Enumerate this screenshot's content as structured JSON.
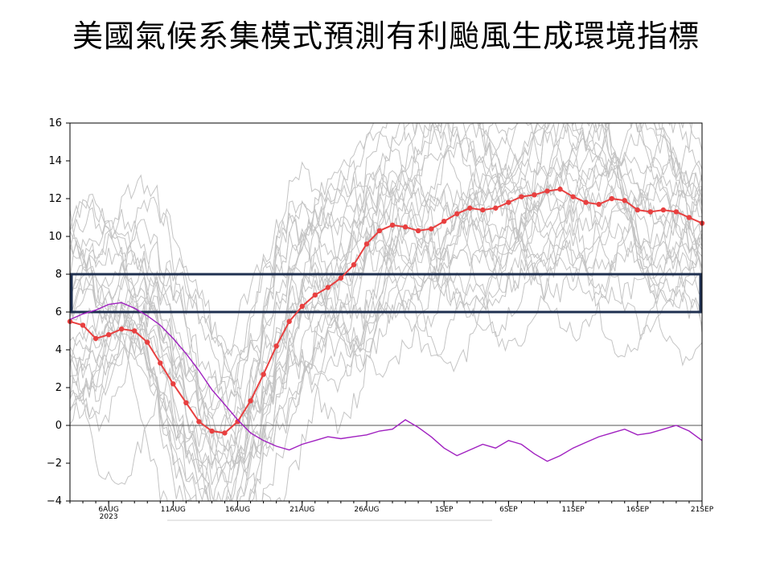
{
  "title": "美國氣候系集模式預測有利颱風生成環境指標",
  "chart_data": {
    "type": "line",
    "x_start": "2023-08-03",
    "x_end": "2023-09-21",
    "x_ticks": [
      {
        "date": "2023-08-06",
        "label": "6AUG",
        "sublabel": "2023"
      },
      {
        "date": "2023-08-11",
        "label": "11AUG"
      },
      {
        "date": "2023-08-16",
        "label": "16AUG"
      },
      {
        "date": "2023-08-21",
        "label": "21AUG"
      },
      {
        "date": "2023-08-26",
        "label": "26AUG"
      },
      {
        "date": "2023-09-01",
        "label": "1SEP"
      },
      {
        "date": "2023-09-06",
        "label": "6SEP"
      },
      {
        "date": "2023-09-11",
        "label": "11SEP"
      },
      {
        "date": "2023-09-16",
        "label": "16SEP"
      },
      {
        "date": "2023-09-21",
        "label": "21SEP"
      }
    ],
    "ylim": [
      -4,
      16
    ],
    "y_ticks": [
      -4,
      -2,
      0,
      2,
      4,
      6,
      8,
      10,
      12,
      14,
      16
    ],
    "y_tick_labels": [
      "−4",
      "−2",
      "0",
      "2",
      "4",
      "6",
      "8",
      "10",
      "12",
      "14",
      "16"
    ],
    "zero_line": 0,
    "highlight_band": {
      "y0": 6,
      "y1": 8,
      "color": "#1f3050"
    },
    "colors": {
      "ensemble_mean": "#e84040",
      "purple_line": "#a020c0",
      "members": "#c4c4c4"
    },
    "series": [
      {
        "role": "ensemble_mean",
        "x": [
          "2023-08-03",
          "2023-08-04",
          "2023-08-05",
          "2023-08-06",
          "2023-08-07",
          "2023-08-08",
          "2023-08-09",
          "2023-08-10",
          "2023-08-11",
          "2023-08-12",
          "2023-08-13",
          "2023-08-14",
          "2023-08-15",
          "2023-08-16",
          "2023-08-17",
          "2023-08-18",
          "2023-08-19",
          "2023-08-20",
          "2023-08-21",
          "2023-08-22",
          "2023-08-23",
          "2023-08-24",
          "2023-08-25",
          "2023-08-26",
          "2023-08-27",
          "2023-08-28",
          "2023-08-29",
          "2023-08-30",
          "2023-08-31",
          "2023-09-01",
          "2023-09-02",
          "2023-09-03",
          "2023-09-04",
          "2023-09-05",
          "2023-09-06",
          "2023-09-07",
          "2023-09-08",
          "2023-09-09",
          "2023-09-10",
          "2023-09-11",
          "2023-09-12",
          "2023-09-13",
          "2023-09-14",
          "2023-09-15",
          "2023-09-16",
          "2023-09-17",
          "2023-09-18",
          "2023-09-19",
          "2023-09-20",
          "2023-09-21"
        ],
        "y": [
          5.5,
          5.3,
          4.6,
          4.8,
          5.1,
          5.0,
          4.4,
          3.3,
          2.2,
          1.2,
          0.2,
          -0.3,
          -0.4,
          0.2,
          1.3,
          2.7,
          4.2,
          5.5,
          6.3,
          6.9,
          7.3,
          7.8,
          8.5,
          9.6,
          10.3,
          10.6,
          10.5,
          10.3,
          10.4,
          10.8,
          11.2,
          11.5,
          11.4,
          11.5,
          11.8,
          12.1,
          12.2,
          12.4,
          12.5,
          12.1,
          11.8,
          11.7,
          12.0,
          11.9,
          11.4,
          11.3,
          11.4,
          11.3,
          11.0,
          10.7
        ]
      },
      {
        "role": "purple_line",
        "x": [
          "2023-08-03",
          "2023-08-04",
          "2023-08-05",
          "2023-08-06",
          "2023-08-07",
          "2023-08-08",
          "2023-08-09",
          "2023-08-10",
          "2023-08-11",
          "2023-08-12",
          "2023-08-13",
          "2023-08-14",
          "2023-08-15",
          "2023-08-16",
          "2023-08-17",
          "2023-08-18",
          "2023-08-19",
          "2023-08-20",
          "2023-08-21",
          "2023-08-22",
          "2023-08-23",
          "2023-08-24",
          "2023-08-25",
          "2023-08-26",
          "2023-08-27",
          "2023-08-28",
          "2023-08-29",
          "2023-08-30",
          "2023-08-31",
          "2023-09-01",
          "2023-09-02",
          "2023-09-03",
          "2023-09-04",
          "2023-09-05",
          "2023-09-06",
          "2023-09-07",
          "2023-09-08",
          "2023-09-09",
          "2023-09-10",
          "2023-09-11",
          "2023-09-12",
          "2023-09-13",
          "2023-09-14",
          "2023-09-15",
          "2023-09-16",
          "2023-09-17",
          "2023-09-18",
          "2023-09-19",
          "2023-09-20",
          "2023-09-21"
        ],
        "y": [
          5.6,
          5.9,
          6.1,
          6.4,
          6.5,
          6.2,
          5.8,
          5.3,
          4.6,
          3.8,
          2.9,
          1.9,
          1.1,
          0.3,
          -0.4,
          -0.8,
          -1.1,
          -1.3,
          -1.0,
          -0.8,
          -0.6,
          -0.7,
          -0.6,
          -0.5,
          -0.3,
          -0.2,
          0.3,
          -0.1,
          -0.6,
          -1.2,
          -1.6,
          -1.3,
          -1.0,
          -1.2,
          -0.8,
          -1.0,
          -1.5,
          -1.9,
          -1.6,
          -1.2,
          -0.9,
          -0.6,
          -0.4,
          -0.2,
          -0.5,
          -0.4,
          -0.2,
          0.0,
          -0.3,
          -0.8
        ]
      }
    ]
  }
}
